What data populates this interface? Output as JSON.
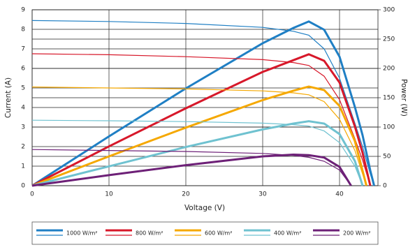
{
  "chart_data": {
    "type": "line",
    "xlabel": "Voltage (V)",
    "ylabel": "Current (A)",
    "y2label": "Power (W)",
    "xlim": [
      0,
      45
    ],
    "xticks": [
      0,
      10,
      20,
      30,
      40
    ],
    "ylim": [
      0,
      9
    ],
    "yticks": [
      0,
      1,
      2,
      3,
      4,
      5,
      6,
      7,
      8,
      9
    ],
    "y2lim": [
      0,
      300
    ],
    "y2ticks": [
      0,
      50,
      100,
      150,
      200,
      250,
      300
    ],
    "grid": true,
    "legend": "bottom",
    "series": [
      {
        "name": "1000 W/m²",
        "color": "#1f7fc4",
        "x": [
          0,
          10,
          20,
          30,
          34,
          36,
          38,
          40,
          42,
          43,
          44,
          44.5
        ],
        "values": [
          8.45,
          8.4,
          8.3,
          8.1,
          7.9,
          7.7,
          7.0,
          5.5,
          3.2,
          2.0,
          0.6,
          0
        ],
        "y2_values": [
          0,
          84,
          166,
          243,
          269,
          280,
          266,
          220,
          134,
          86,
          26,
          0
        ]
      },
      {
        "name": "800 W/m²",
        "color": "#d7182a",
        "x": [
          0,
          10,
          20,
          30,
          34,
          36,
          38,
          40,
          42,
          43,
          44
        ],
        "values": [
          6.75,
          6.7,
          6.6,
          6.45,
          6.3,
          6.15,
          5.6,
          4.4,
          2.4,
          1.3,
          0
        ],
        "y2_values": [
          0,
          67,
          132,
          194,
          214,
          224,
          213,
          176,
          101,
          56,
          0
        ]
      },
      {
        "name": "600 W/m²",
        "color": "#f5a800",
        "x": [
          0,
          10,
          20,
          30,
          34,
          36,
          38,
          40,
          42,
          43.5
        ],
        "values": [
          5.05,
          5.0,
          4.95,
          4.85,
          4.75,
          4.65,
          4.3,
          3.4,
          1.8,
          0
        ],
        "y2_values": [
          0,
          50,
          99,
          146,
          162,
          169,
          163,
          136,
          76,
          0
        ]
      },
      {
        "name": "400 W/m²",
        "color": "#6fc2d0",
        "x": [
          0,
          10,
          20,
          30,
          34,
          36,
          38,
          40,
          42,
          43
        ],
        "values": [
          3.35,
          3.32,
          3.28,
          3.2,
          3.12,
          3.05,
          2.8,
          2.2,
          1.0,
          0
        ],
        "y2_values": [
          0,
          33,
          66,
          96,
          106,
          110,
          106,
          88,
          42,
          0
        ]
      },
      {
        "name": "200 W/m²",
        "color": "#6d2077",
        "x": [
          0,
          10,
          20,
          30,
          34,
          36,
          38,
          40,
          41.5
        ],
        "values": [
          1.85,
          1.8,
          1.75,
          1.65,
          1.55,
          1.45,
          1.25,
          0.8,
          0
        ],
        "y2_values": [
          0,
          18,
          35,
          50,
          53,
          52,
          48,
          32,
          0
        ]
      }
    ]
  }
}
